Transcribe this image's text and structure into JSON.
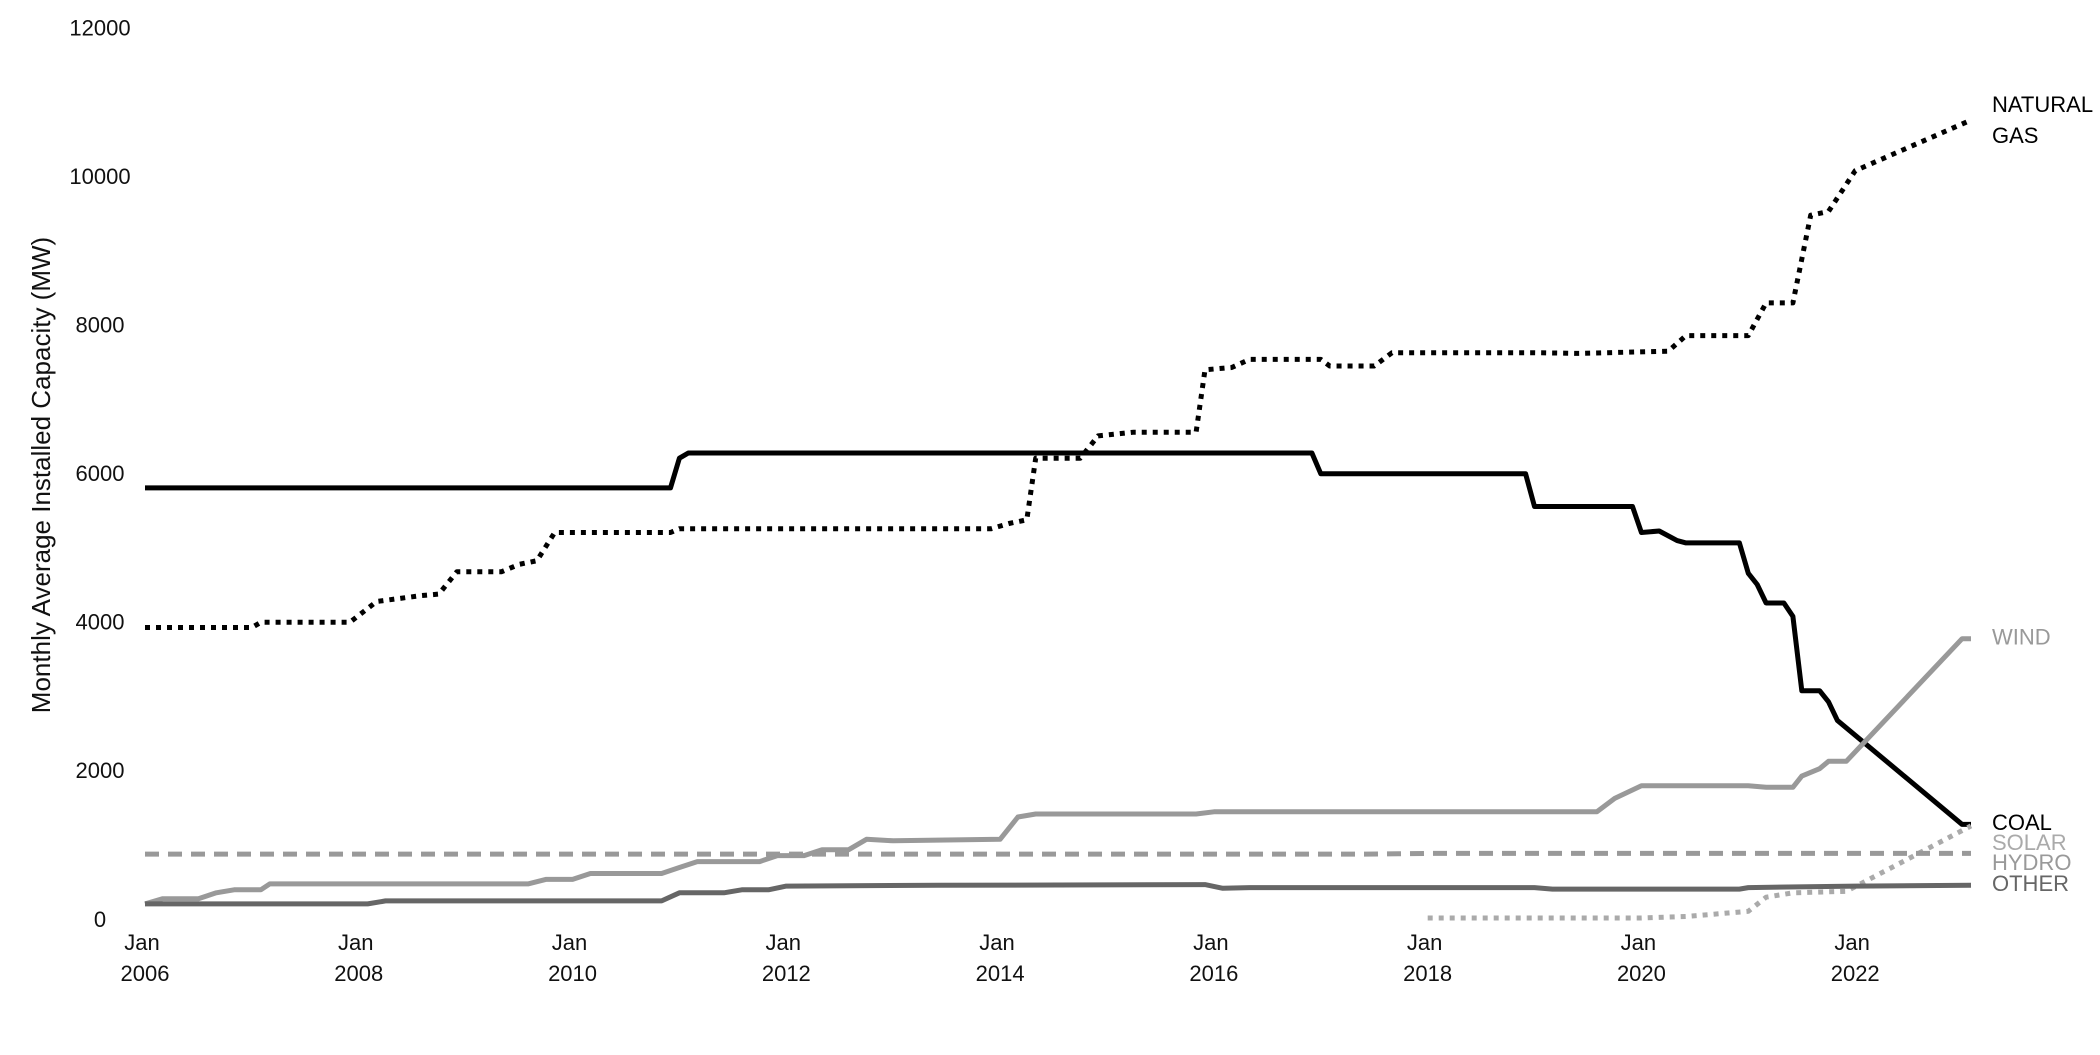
{
  "chart_data": {
    "type": "line",
    "y_label": "Monthly Average Installed Capacity (MW)",
    "xlim": [
      "2006-01",
      "2023-02"
    ],
    "xticks": [
      {
        "value": "2006-01",
        "label": "Jan 2006"
      },
      {
        "value": "2008-01",
        "label": "Jan 2008"
      },
      {
        "value": "2010-01",
        "label": "Jan 2010"
      },
      {
        "value": "2012-01",
        "label": "Jan 2012"
      },
      {
        "value": "2014-01",
        "label": "Jan 2014"
      },
      {
        "value": "2016-01",
        "label": "Jan 2016"
      },
      {
        "value": "2018-01",
        "label": "Jan 2018"
      },
      {
        "value": "2020-01",
        "label": "Jan 2020"
      },
      {
        "value": "2022-01",
        "label": "Jan 2022"
      }
    ],
    "ylim": [
      0,
      12000
    ],
    "yticks": [
      0,
      2000,
      4000,
      6000,
      8000,
      10000,
      12000
    ],
    "grid": false,
    "series": [
      {
        "name": "NATURAL GAS",
        "color": "#000000",
        "style": "dotted",
        "x": [
          "2006-01",
          "2007-01",
          "2007-02",
          "2007-12",
          "2008-03",
          "2008-08",
          "2008-10",
          "2008-12",
          "2009-05",
          "2009-07",
          "2009-09",
          "2009-11",
          "2010-12",
          "2011-01",
          "2013-12",
          "2014-02",
          "2014-04",
          "2014-05",
          "2014-10",
          "2014-12",
          "2015-04",
          "2015-11",
          "2015-12",
          "2016-03",
          "2016-05",
          "2017-01",
          "2017-02",
          "2017-07",
          "2017-09",
          "2019-01",
          "2019-06",
          "2020-04",
          "2020-06",
          "2021-01",
          "2021-03",
          "2021-06",
          "2021-08",
          "2021-10",
          "2022-01",
          "2023-02"
        ],
        "values": [
          3950,
          3950,
          4020,
          4020,
          4300,
          4380,
          4400,
          4700,
          4700,
          4800,
          4850,
          5230,
          5230,
          5280,
          5280,
          5350,
          5400,
          6230,
          6230,
          6530,
          6580,
          6580,
          7420,
          7450,
          7560,
          7560,
          7470,
          7470,
          7650,
          7650,
          7640,
          7670,
          7880,
          7880,
          8320,
          8320,
          9500,
          9550,
          10100,
          10780
        ]
      },
      {
        "name": "COAL",
        "color": "#000000",
        "style": "solid",
        "x": [
          "2006-01",
          "2010-12",
          "2011-01",
          "2011-02",
          "2016-12",
          "2017-01",
          "2018-12",
          "2019-01",
          "2019-12",
          "2020-01",
          "2020-03",
          "2020-05",
          "2020-06",
          "2020-12",
          "2021-01",
          "2021-02",
          "2021-03",
          "2021-05",
          "2021-06",
          "2021-07",
          "2021-09",
          "2021-10",
          "2021-11",
          "2023-01",
          "2023-02"
        ],
        "values": [
          5830,
          5830,
          6230,
          6300,
          6300,
          6020,
          6020,
          5580,
          5580,
          5230,
          5250,
          5120,
          5090,
          5090,
          4680,
          4530,
          4280,
          4280,
          4100,
          3100,
          3100,
          2950,
          2700,
          1300,
          1300
        ]
      },
      {
        "name": "WIND",
        "color": "#999999",
        "style": "solid",
        "x": [
          "2006-01",
          "2006-03",
          "2006-07",
          "2006-09",
          "2006-11",
          "2007-02",
          "2007-03",
          "2009-08",
          "2009-10",
          "2010-01",
          "2010-03",
          "2010-11",
          "2011-01",
          "2011-03",
          "2011-10",
          "2011-12",
          "2012-03",
          "2012-05",
          "2012-08",
          "2012-10",
          "2013-01",
          "2014-01",
          "2014-03",
          "2014-05",
          "2015-11",
          "2016-01",
          "2019-08",
          "2019-10",
          "2020-01",
          "2021-01",
          "2021-03",
          "2021-06",
          "2021-07",
          "2021-09",
          "2021-10",
          "2021-12",
          "2023-01",
          "2023-02"
        ],
        "values": [
          230,
          300,
          300,
          380,
          420,
          420,
          500,
          500,
          560,
          560,
          640,
          640,
          720,
          800,
          800,
          880,
          880,
          960,
          960,
          1100,
          1080,
          1100,
          1400,
          1440,
          1440,
          1470,
          1470,
          1650,
          1820,
          1820,
          1800,
          1800,
          1950,
          2050,
          2150,
          2150,
          3800,
          3800
        ]
      },
      {
        "name": "SOLAR",
        "color": "#aaaaaa",
        "style": "dotted",
        "x": [
          "2018-01",
          "2020-01",
          "2020-06",
          "2021-01",
          "2021-03",
          "2021-06",
          "2021-12",
          "2023-02"
        ],
        "values": [
          40,
          40,
          60,
          130,
          320,
          380,
          400,
          1280
        ]
      },
      {
        "name": "HYDRO",
        "color": "#999999",
        "style": "dashed",
        "x": [
          "2006-01",
          "2017-06",
          "2018-01",
          "2023-02"
        ],
        "values": [
          900,
          900,
          910,
          910
        ]
      },
      {
        "name": "OTHER",
        "color": "#666666",
        "style": "solid",
        "x": [
          "2006-01",
          "2008-02",
          "2008-04",
          "2010-11",
          "2011-01",
          "2011-06",
          "2011-08",
          "2011-11",
          "2012-01",
          "2013-06",
          "2015-12",
          "2016-02",
          "2016-05",
          "2019-01",
          "2019-03",
          "2020-12",
          "2021-01",
          "2022-01",
          "2023-02"
        ],
        "values": [
          230,
          230,
          270,
          270,
          380,
          380,
          420,
          420,
          470,
          480,
          490,
          440,
          450,
          450,
          430,
          430,
          450,
          470,
          480
        ]
      }
    ]
  }
}
